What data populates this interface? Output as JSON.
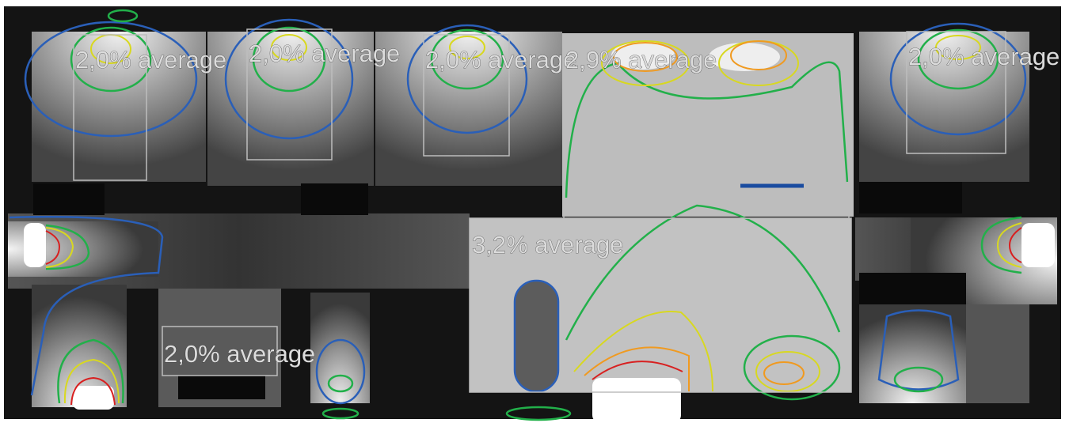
{
  "zones": [
    {
      "label": "2,0% average"
    },
    {
      "label": "2,0% average"
    },
    {
      "label": "2,0% average"
    },
    {
      "label": "2,9% average"
    },
    {
      "label": "2,0% average"
    },
    {
      "label": "3,2% average"
    },
    {
      "label": "2,0% average"
    }
  ]
}
